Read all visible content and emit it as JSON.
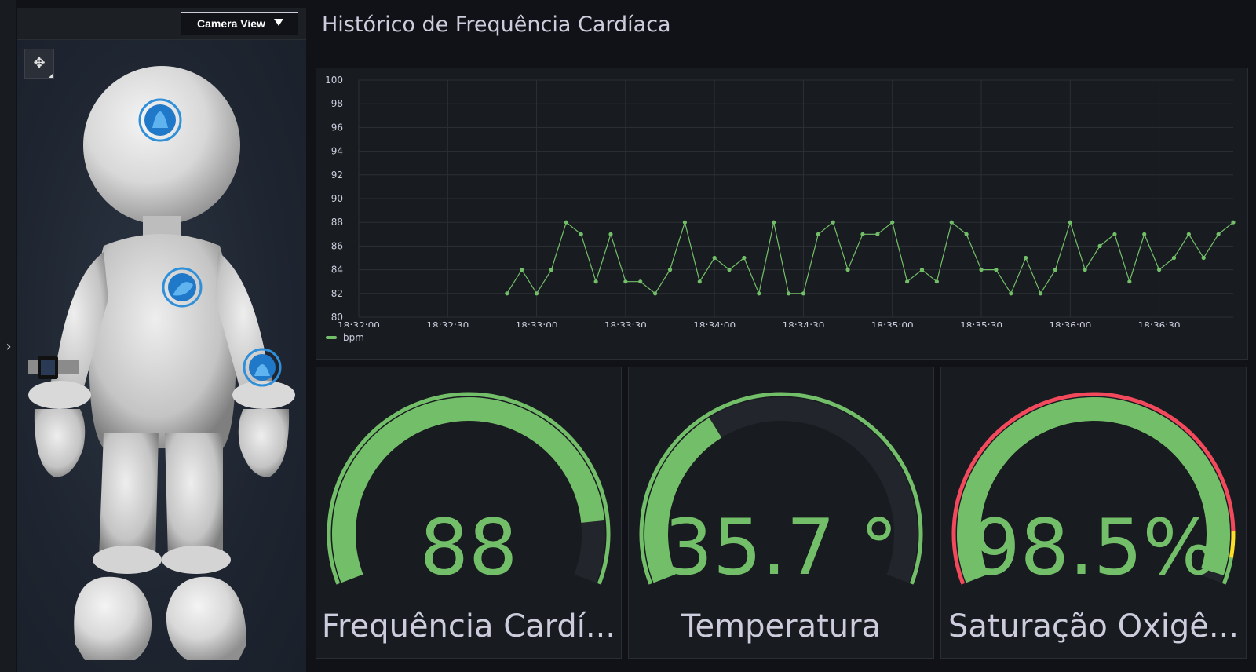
{
  "camera": {
    "label": "Camera View"
  },
  "sidebar": {
    "expand_icon": "chevron-right-icon"
  },
  "viewer": {
    "tool_icon": "move-icon"
  },
  "dashboard": {
    "title": "Histórico de Frequência Cardíaca"
  },
  "chart_data": {
    "type": "line",
    "title": "Histórico de Frequência Cardíaca",
    "ylim": [
      80,
      100
    ],
    "yticks": [
      80,
      82,
      84,
      86,
      88,
      90,
      92,
      94,
      96,
      98,
      100
    ],
    "x_tick_labels": [
      "18:32:00",
      "18:32:30",
      "18:33:00",
      "18:33:30",
      "18:34:00",
      "18:34:30",
      "18:35:00",
      "18:35:30",
      "18:36:00",
      "18:36:30"
    ],
    "x_start": "18:32:00",
    "x_interval_seconds": 5,
    "first_point_time": "18:32:50",
    "grid": true,
    "legend": "bottom-left",
    "series": [
      {
        "name": "bpm",
        "color": "#73bf69",
        "values": [
          82,
          84,
          82,
          84,
          88,
          87,
          83,
          87,
          83,
          83,
          82,
          84,
          88,
          83,
          85,
          84,
          85,
          82,
          88,
          82,
          82,
          87,
          88,
          84,
          87,
          87,
          88,
          83,
          84,
          83,
          88,
          87,
          84,
          84,
          82,
          85,
          82,
          84,
          88,
          84,
          86,
          87,
          83,
          87,
          84,
          85,
          87,
          85,
          87,
          88
        ]
      }
    ]
  },
  "gauges": [
    {
      "value": "88",
      "label": "Frequência Cardí...",
      "fraction": 0.88,
      "color": "#73bf69"
    },
    {
      "value": "35.7 °",
      "label": "Temperatura",
      "fraction": 0.357,
      "color": "#73bf69"
    },
    {
      "value": "98.5%",
      "label": "Saturação Oxigê...",
      "fraction": 0.985,
      "color": "#73bf69",
      "thresholds": [
        {
          "color": "#f2495c",
          "to": 0.9
        },
        {
          "color": "#fade2a",
          "to": 0.95
        },
        {
          "color": "#73bf69",
          "to": 1.0
        }
      ]
    }
  ]
}
